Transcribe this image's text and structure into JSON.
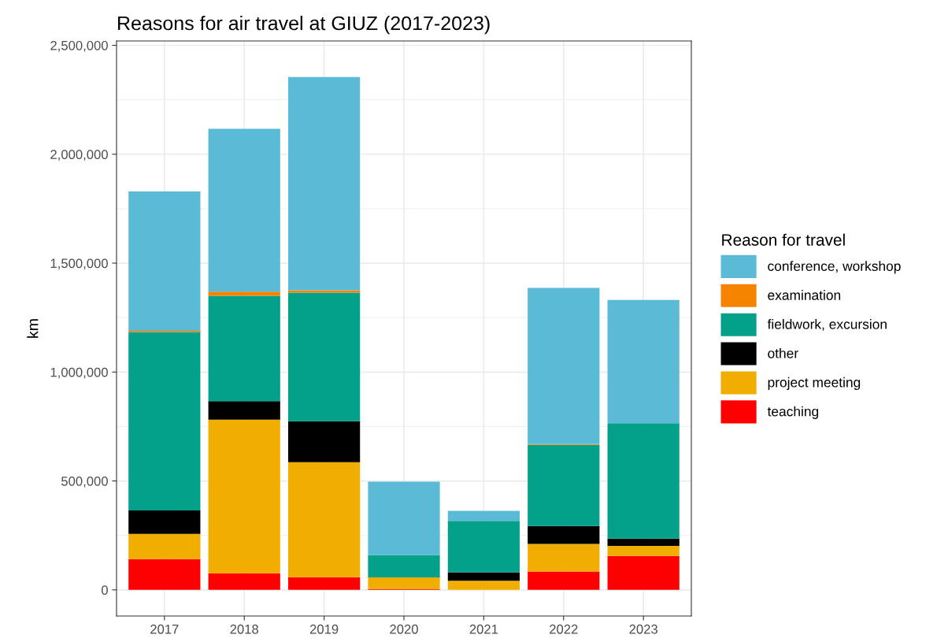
{
  "chart_data": {
    "type": "bar",
    "stacked": true,
    "title": "Reasons for air travel at GIUZ (2017-2023)",
    "ylabel": "km",
    "legend_title": "Reason for travel",
    "legend": "right",
    "grid": true,
    "categories": [
      "2017",
      "2018",
      "2019",
      "2020",
      "2021",
      "2022",
      "2023"
    ],
    "series": [
      {
        "name": "teaching",
        "color": "#ff0000",
        "values": [
          141000,
          76000,
          58000,
          3000,
          0,
          84000,
          156000
        ]
      },
      {
        "name": "project meeting",
        "color": "#f2ae00",
        "values": [
          116000,
          705000,
          528000,
          54000,
          42000,
          127000,
          46000
        ]
      },
      {
        "name": "other",
        "color": "#000000",
        "values": [
          108000,
          85000,
          188000,
          0,
          39000,
          82000,
          33000
        ]
      },
      {
        "name": "fieldwork, excursion",
        "color": "#03a08a",
        "values": [
          818000,
          484000,
          591000,
          102000,
          236000,
          373000,
          530000
        ]
      },
      {
        "name": "examination",
        "color": "#f58300",
        "values": [
          6000,
          19000,
          10000,
          0,
          0,
          3000,
          0
        ]
      },
      {
        "name": "conference, workshop",
        "color": "#5bbad5",
        "values": [
          640000,
          748000,
          980000,
          338000,
          46000,
          717000,
          566000
        ]
      }
    ],
    "ylim": [
      -120000,
      2520000
    ],
    "yticks": [
      {
        "value": 0,
        "label": "0"
      },
      {
        "value": 250000,
        "label": null
      },
      {
        "value": 500000,
        "label": "500,000"
      },
      {
        "value": 750000,
        "label": null
      },
      {
        "value": 1000000,
        "label": "1,000,000"
      },
      {
        "value": 1250000,
        "label": null
      },
      {
        "value": 1500000,
        "label": "1,500,000"
      },
      {
        "value": 1750000,
        "label": null
      },
      {
        "value": 2000000,
        "label": "2,000,000"
      },
      {
        "value": 2250000,
        "label": null
      },
      {
        "value": 2500000,
        "label": "2,500,000"
      }
    ]
  }
}
